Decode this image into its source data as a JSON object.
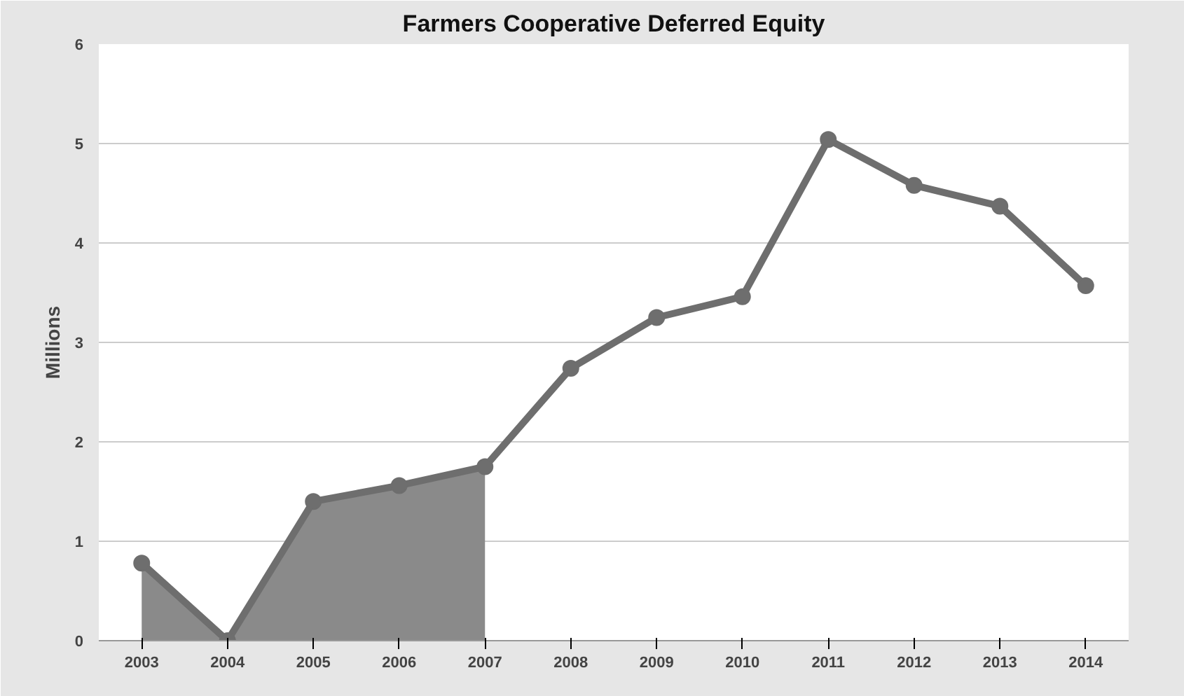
{
  "chart_data": {
    "type": "line",
    "title": "Farmers Cooperative Deferred Equity",
    "ylabel": "Millions",
    "categories": [
      "2003",
      "2004",
      "2005",
      "2006",
      "2007",
      "2008",
      "2009",
      "2010",
      "2011",
      "2012",
      "2013",
      "2014"
    ],
    "series": [
      {
        "type": "area",
        "color": "#8a8a8a",
        "values": [
          0.78,
          0,
          1.4,
          1.56,
          1.75,
          null,
          null,
          null,
          null,
          null,
          null,
          null
        ]
      },
      {
        "color": "#6e6e6e",
        "values": [
          0.78,
          0,
          1.4,
          1.56,
          1.75,
          2.74,
          3.25,
          3.46,
          5.04,
          4.58,
          4.37,
          3.57
        ],
        "marker": "circle"
      }
    ],
    "ylim": [
      0,
      6
    ],
    "yticks": [
      0,
      1,
      2,
      3,
      4,
      5,
      6
    ],
    "grid": "y"
  }
}
